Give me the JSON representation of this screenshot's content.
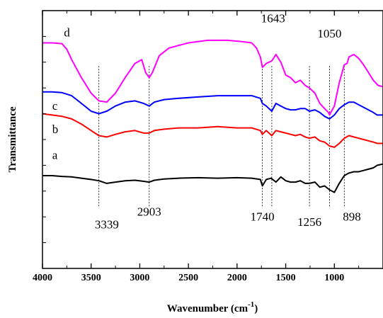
{
  "chart_data": {
    "type": "line",
    "title": "",
    "xlabel": "Wavenumber (cm",
    "xlabel_sup": "-1",
    "xlabel_close": ")",
    "ylabel": "Transmittance",
    "xlim": [
      4000,
      500
    ],
    "x_reversed": true,
    "ylim": [
      0,
      10
    ],
    "y_ticks_labeled": false,
    "grid": false,
    "x_ticks": [
      4000,
      3500,
      3000,
      2500,
      2000,
      1500,
      1000
    ],
    "x_tick_labels": [
      "4000",
      "3500",
      "3000",
      "2500",
      "2000",
      "1500",
      "1000"
    ],
    "reference_lines": [
      3420,
      2903,
      1740,
      1643,
      1256,
      1050,
      898
    ],
    "annotations": [
      {
        "text": "3339",
        "x": 3339,
        "y": 1.55
      },
      {
        "text": "2903",
        "x": 2903,
        "y": 2.05
      },
      {
        "text": "1740",
        "x": 1740,
        "y": 1.85
      },
      {
        "text": "1256",
        "x": 1256,
        "y": 1.65
      },
      {
        "text": "898",
        "x": 820,
        "y": 1.85
      },
      {
        "text": "1643",
        "x": 1630,
        "y": 9.55
      },
      {
        "text": "1050",
        "x": 1050,
        "y": 8.95
      }
    ],
    "series": [
      {
        "name": "a",
        "color": "#000000",
        "label_at": [
          3900,
          4.25
        ],
        "x": [
          4000,
          3900,
          3800,
          3700,
          3600,
          3500,
          3420,
          3339,
          3250,
          3150,
          3050,
          2960,
          2903,
          2850,
          2750,
          2600,
          2400,
          2200,
          2000,
          1850,
          1760,
          1740,
          1700,
          1650,
          1600,
          1550,
          1500,
          1450,
          1400,
          1350,
          1300,
          1256,
          1200,
          1150,
          1100,
          1050,
          1000,
          950,
          898,
          850,
          800,
          750,
          700,
          650,
          600,
          560,
          500
        ],
        "y": [
          3.6,
          3.6,
          3.57,
          3.55,
          3.5,
          3.45,
          3.4,
          3.3,
          3.35,
          3.4,
          3.42,
          3.38,
          3.35,
          3.42,
          3.47,
          3.5,
          3.52,
          3.5,
          3.52,
          3.5,
          3.45,
          3.2,
          3.45,
          3.5,
          3.35,
          3.55,
          3.4,
          3.35,
          3.35,
          3.4,
          3.3,
          3.3,
          3.35,
          3.15,
          3.2,
          3.05,
          2.95,
          3.3,
          3.6,
          3.7,
          3.75,
          3.75,
          3.8,
          3.85,
          3.9,
          4.0,
          4.05
        ]
      },
      {
        "name": "b",
        "color": "#ff0000",
        "label_at": [
          3900,
          5.25
        ],
        "x": [
          4000,
          3900,
          3800,
          3700,
          3600,
          3500,
          3420,
          3339,
          3250,
          3150,
          3050,
          2960,
          2903,
          2850,
          2750,
          2600,
          2400,
          2200,
          2000,
          1850,
          1760,
          1740,
          1700,
          1643,
          1600,
          1550,
          1500,
          1450,
          1400,
          1350,
          1300,
          1256,
          1200,
          1150,
          1100,
          1050,
          1000,
          950,
          898,
          850,
          800,
          750,
          700,
          650,
          600,
          560,
          500
        ],
        "y": [
          6.0,
          5.95,
          5.9,
          5.8,
          5.6,
          5.35,
          5.15,
          5.1,
          5.2,
          5.3,
          5.35,
          5.25,
          5.25,
          5.35,
          5.4,
          5.45,
          5.45,
          5.5,
          5.45,
          5.45,
          5.35,
          5.2,
          5.35,
          5.15,
          5.35,
          5.3,
          5.25,
          5.2,
          5.15,
          5.2,
          5.1,
          5.05,
          5.1,
          4.95,
          4.9,
          4.75,
          4.7,
          4.85,
          5.05,
          5.15,
          5.1,
          5.05,
          5.0,
          4.95,
          4.9,
          4.85,
          4.85
        ]
      },
      {
        "name": "c",
        "color": "#0000ff",
        "label_at": [
          3900,
          6.15
        ],
        "x": [
          4000,
          3900,
          3800,
          3700,
          3600,
          3500,
          3420,
          3339,
          3250,
          3150,
          3050,
          2960,
          2903,
          2850,
          2750,
          2600,
          2400,
          2200,
          2000,
          1850,
          1760,
          1740,
          1700,
          1643,
          1600,
          1550,
          1500,
          1450,
          1400,
          1350,
          1300,
          1256,
          1200,
          1150,
          1100,
          1050,
          1000,
          950,
          898,
          850,
          800,
          750,
          700,
          650,
          600,
          560,
          500
        ],
        "y": [
          6.85,
          6.85,
          6.82,
          6.7,
          6.4,
          6.1,
          6.0,
          6.1,
          6.3,
          6.45,
          6.5,
          6.4,
          6.3,
          6.45,
          6.55,
          6.6,
          6.65,
          6.7,
          6.7,
          6.7,
          6.6,
          6.4,
          6.3,
          6.1,
          6.4,
          6.3,
          6.2,
          6.15,
          6.15,
          6.2,
          6.2,
          6.1,
          6.15,
          6.05,
          5.9,
          5.8,
          5.95,
          6.2,
          6.35,
          6.45,
          6.45,
          6.35,
          6.25,
          6.15,
          6.05,
          5.95,
          5.95
        ]
      },
      {
        "name": "d",
        "color": "#ff00ff",
        "label_at": [
          3780,
          9.0
        ],
        "x": [
          4000,
          3900,
          3800,
          3750,
          3700,
          3600,
          3500,
          3420,
          3339,
          3250,
          3150,
          3050,
          2980,
          2940,
          2903,
          2870,
          2800,
          2700,
          2500,
          2300,
          2100,
          1950,
          1850,
          1800,
          1760,
          1740,
          1700,
          1643,
          1600,
          1550,
          1500,
          1450,
          1400,
          1350,
          1300,
          1256,
          1200,
          1150,
          1100,
          1060,
          1050,
          1030,
          1000,
          950,
          898,
          870,
          850,
          800,
          750,
          700,
          650,
          600,
          550,
          500
        ],
        "y": [
          8.75,
          8.75,
          8.72,
          8.5,
          8.1,
          7.4,
          6.8,
          6.5,
          6.45,
          6.8,
          7.4,
          7.95,
          8.1,
          7.6,
          7.4,
          7.6,
          8.25,
          8.55,
          8.75,
          8.85,
          8.85,
          8.8,
          8.75,
          8.55,
          8.2,
          7.8,
          7.95,
          8.05,
          8.3,
          8.0,
          7.5,
          7.4,
          7.2,
          7.3,
          7.1,
          7.0,
          6.8,
          6.4,
          6.2,
          6.05,
          5.95,
          6.1,
          6.3,
          7.2,
          7.9,
          7.95,
          8.2,
          8.3,
          8.15,
          7.9,
          7.6,
          7.3,
          7.1,
          7.05
        ]
      }
    ]
  }
}
